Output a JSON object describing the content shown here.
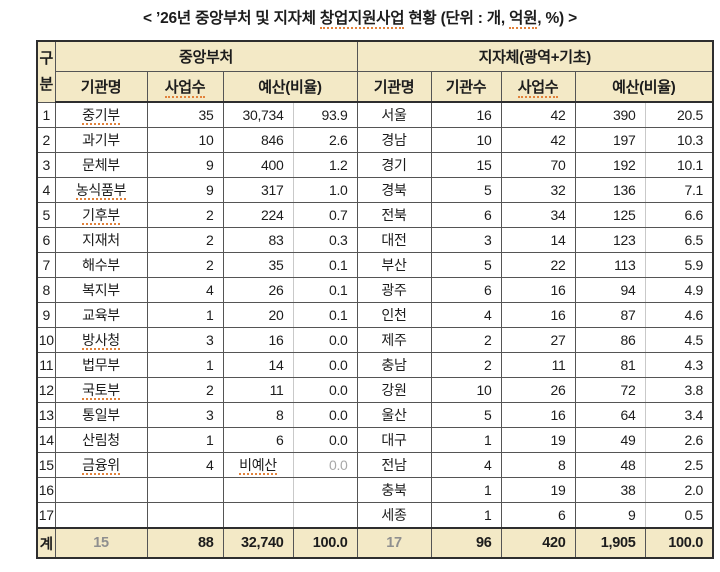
{
  "colors": {
    "header_bg": "#f3e9c6",
    "border_dark": "#2e2e2e",
    "border": "#555555",
    "border_light": "#c9c9c9",
    "squiggle": "#e2823b",
    "muted_text": "#a8a8a8",
    "total_count_gray": "#8f8f8f"
  },
  "title_parts": [
    {
      "text": "< ’26년 중앙부처 및 지자체 "
    },
    {
      "text": "창업지원사업",
      "squiggle": true
    },
    {
      "text": " 현황 (단위 : 개, "
    },
    {
      "text": "억원",
      "squiggle": true
    },
    {
      "text": ", %) >"
    }
  ],
  "header": {
    "gubun": [
      "구",
      "분"
    ],
    "group_central": "중앙부처",
    "group_local": "지자체(광역+기초)",
    "agency": "기관명",
    "projects": "사업수",
    "org_count": "기관수",
    "budget_ratio": "예산(비율)"
  },
  "rows": [
    {
      "no": "1",
      "ln": "중기부",
      "ln_sq": true,
      "lp": "35",
      "lb": "30,734",
      "lr": "93.9",
      "rn": "서울",
      "ro": "16",
      "rp": "42",
      "rb": "390",
      "rr": "20.5"
    },
    {
      "no": "2",
      "ln": "과기부",
      "lp": "10",
      "lb": "846",
      "lr": "2.6",
      "rn": "경남",
      "ro": "10",
      "rp": "42",
      "rb": "197",
      "rr": "10.3"
    },
    {
      "no": "3",
      "ln": "문체부",
      "lp": "9",
      "lb": "400",
      "lr": "1.2",
      "rn": "경기",
      "ro": "15",
      "rp": "70",
      "rb": "192",
      "rr": "10.1"
    },
    {
      "no": "4",
      "ln": "농식품부",
      "ln_sq": true,
      "lp": "9",
      "lb": "317",
      "lr": "1.0",
      "rn": "경북",
      "ro": "5",
      "rp": "32",
      "rb": "136",
      "rr": "7.1"
    },
    {
      "no": "5",
      "ln": "기후부",
      "ln_sq": true,
      "lp": "2",
      "lb": "224",
      "lr": "0.7",
      "rn": "전북",
      "ro": "6",
      "rp": "34",
      "rb": "125",
      "rr": "6.6"
    },
    {
      "no": "6",
      "ln": "지재처",
      "lp": "2",
      "lb": "83",
      "lr": "0.3",
      "rn": "대전",
      "ro": "3",
      "rp": "14",
      "rb": "123",
      "rr": "6.5"
    },
    {
      "no": "7",
      "ln": "해수부",
      "lp": "2",
      "lb": "35",
      "lr": "0.1",
      "rn": "부산",
      "ro": "5",
      "rp": "22",
      "rb": "113",
      "rr": "5.9"
    },
    {
      "no": "8",
      "ln": "복지부",
      "lp": "4",
      "lb": "26",
      "lr": "0.1",
      "rn": "광주",
      "ro": "6",
      "rp": "16",
      "rb": "94",
      "rr": "4.9"
    },
    {
      "no": "9",
      "ln": "교육부",
      "lp": "1",
      "lb": "20",
      "lr": "0.1",
      "rn": "인천",
      "ro": "4",
      "rp": "16",
      "rb": "87",
      "rr": "4.6"
    },
    {
      "no": "10",
      "ln": "방사청",
      "ln_sq": true,
      "lp": "3",
      "lb": "16",
      "lr": "0.0",
      "rn": "제주",
      "ro": "2",
      "rp": "27",
      "rb": "86",
      "rr": "4.5"
    },
    {
      "no": "11",
      "ln": "법무부",
      "lp": "1",
      "lb": "14",
      "lr": "0.0",
      "rn": "충남",
      "ro": "2",
      "rp": "11",
      "rb": "81",
      "rr": "4.3"
    },
    {
      "no": "12",
      "ln": "국토부",
      "ln_sq": true,
      "lp": "2",
      "lb": "11",
      "lr": "0.0",
      "rn": "강원",
      "ro": "10",
      "rp": "26",
      "rb": "72",
      "rr": "3.8"
    },
    {
      "no": "13",
      "ln": "통일부",
      "lp": "3",
      "lb": "8",
      "lr": "0.0",
      "rn": "울산",
      "ro": "5",
      "rp": "16",
      "rb": "64",
      "rr": "3.4"
    },
    {
      "no": "14",
      "ln": "산림청",
      "lp": "1",
      "lb": "6",
      "lr": "0.0",
      "rn": "대구",
      "ro": "1",
      "rp": "19",
      "rb": "49",
      "rr": "2.6"
    },
    {
      "no": "15",
      "ln": "금융위",
      "ln_sq": true,
      "lp": "4",
      "lb": "비예산",
      "lb_sq": true,
      "lb_c": true,
      "lr": "0.0",
      "lr_m": true,
      "rn": "전남",
      "ro": "4",
      "rp": "8",
      "rb": "48",
      "rr": "2.5"
    },
    {
      "no": "16",
      "ln": "",
      "lp": "",
      "lb": "",
      "lr": "",
      "rn": "충북",
      "ro": "1",
      "rp": "19",
      "rb": "38",
      "rr": "2.0"
    },
    {
      "no": "17",
      "ln": "",
      "lp": "",
      "lb": "",
      "lr": "",
      "rn": "세종",
      "ro": "1",
      "rp": "6",
      "rb": "9",
      "rr": "0.5"
    }
  ],
  "total": {
    "label": "계",
    "l_agencies": "15",
    "l_projects": "88",
    "l_budget": "32,740",
    "l_ratio": "100.0",
    "r_agencies": "17",
    "r_orgs": "96",
    "r_projects": "420",
    "r_budget": "1,905",
    "r_ratio": "100.0"
  }
}
